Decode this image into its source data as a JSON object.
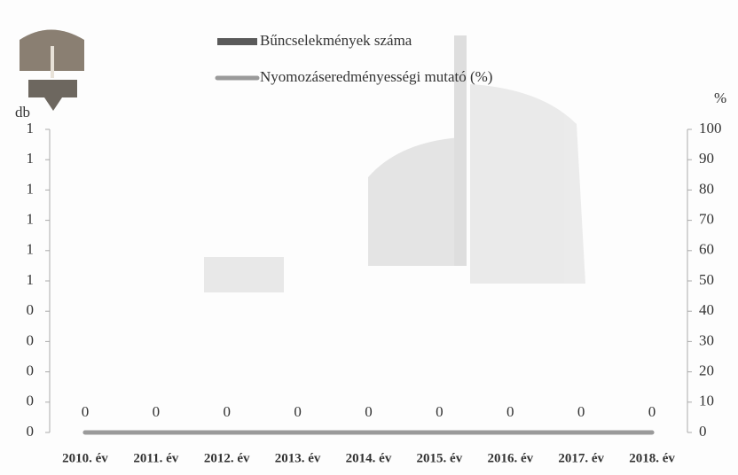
{
  "chart_data": {
    "type": "bar_line",
    "y_label": "db",
    "y2_label": "%",
    "categories": [
      "2010. év",
      "2011. év",
      "2012. év",
      "2013. év",
      "2014. év",
      "2015. év",
      "2016. év",
      "2017. év",
      "2018. év"
    ],
    "series": [
      {
        "name": "Bűncselekmények száma",
        "type": "bar",
        "color": "#5a5a5a",
        "values": [
          0,
          0,
          0,
          0,
          0,
          0,
          0,
          0,
          0
        ]
      },
      {
        "name": "Nyomozáseredményességi mutató (%)",
        "type": "line",
        "axis": "y2",
        "color": "#9a9a9a",
        "values": [
          0,
          0,
          0,
          0,
          0,
          0,
          0,
          0,
          0
        ]
      }
    ],
    "ylim": [
      0,
      1
    ],
    "yticks": [
      0,
      {
        "value": 0.1,
        "label": "0"
      },
      {
        "value": 0.2,
        "label": "0"
      },
      {
        "value": 0.3,
        "label": "0"
      },
      {
        "value": 0.4,
        "label": "0"
      },
      {
        "value": 0.5,
        "label": "1"
      },
      {
        "value": 0.6,
        "label": "1"
      },
      {
        "value": 0.7,
        "label": "1"
      },
      {
        "value": 0.8,
        "label": "1"
      },
      {
        "value": 0.9,
        "label": "1"
      },
      1
    ],
    "y2lim": [
      0,
      100
    ],
    "y2ticks": [
      0,
      10,
      20,
      30,
      40,
      50,
      60,
      70,
      80,
      90,
      100
    ]
  }
}
